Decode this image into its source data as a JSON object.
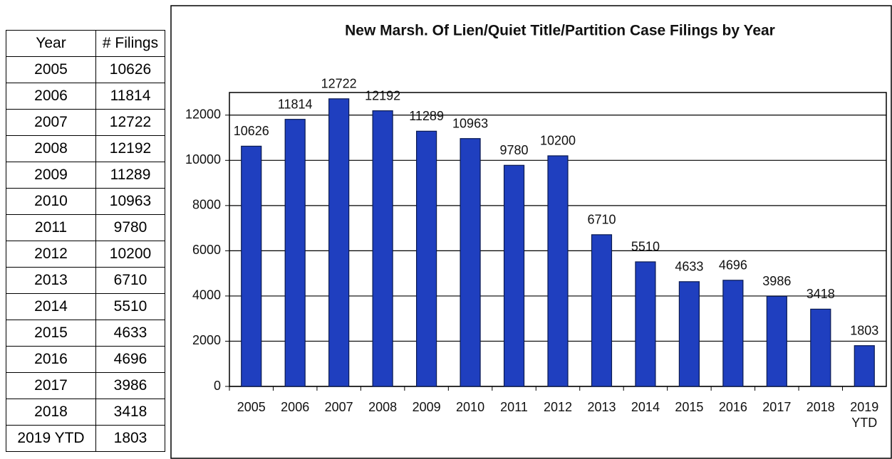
{
  "table": {
    "header": [
      "Year",
      "# Filings"
    ],
    "rows": [
      [
        "2005",
        10626
      ],
      [
        "2006",
        11814
      ],
      [
        "2007",
        12722
      ],
      [
        "2008",
        12192
      ],
      [
        "2009",
        11289
      ],
      [
        "2010",
        10963
      ],
      [
        "2011",
        9780
      ],
      [
        "2012",
        10200
      ],
      [
        "2013",
        6710
      ],
      [
        "2014",
        5510
      ],
      [
        "2015",
        4633
      ],
      [
        "2016",
        4696
      ],
      [
        "2017",
        3986
      ],
      [
        "2018",
        3418
      ],
      [
        "2019 YTD",
        1803
      ]
    ]
  },
  "chart_data": {
    "type": "bar",
    "title": "New Marsh. Of Lien/Quiet Title/Partition Case Filings by Year",
    "categories": [
      "2005",
      "2006",
      "2007",
      "2008",
      "2009",
      "2010",
      "2011",
      "2012",
      "2013",
      "2014",
      "2015",
      "2016",
      "2017",
      "2018",
      "2019 YTD"
    ],
    "values": [
      10626,
      11814,
      12722,
      12192,
      11289,
      10963,
      9780,
      10200,
      6710,
      5510,
      4633,
      4696,
      3986,
      3418,
      1803
    ],
    "color": "#1f3fbf",
    "ylim": [
      0,
      13000
    ],
    "yticks": [
      0,
      2000,
      4000,
      6000,
      8000,
      10000,
      12000
    ],
    "grid": true
  }
}
